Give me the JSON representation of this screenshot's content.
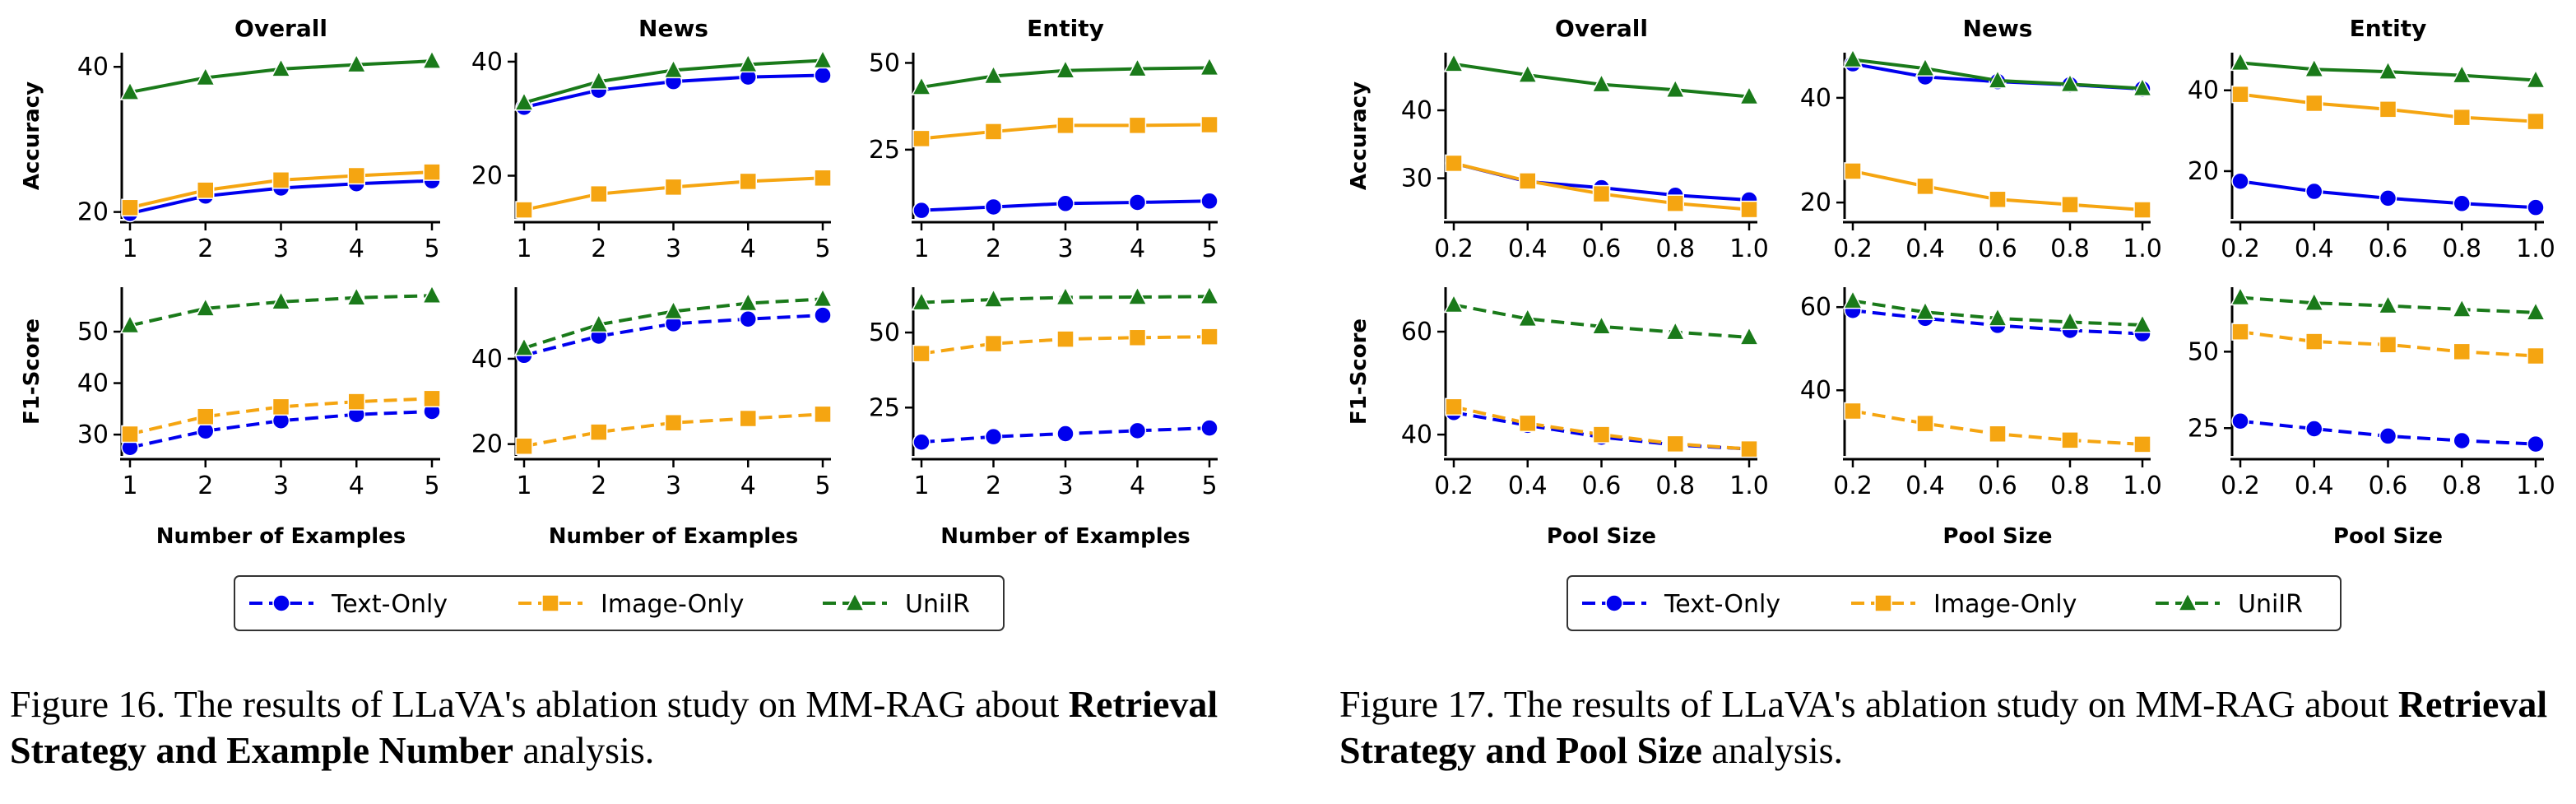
{
  "colors": {
    "text_only": "#0000ee",
    "image_only": "#f5a511",
    "unir": "#1a7a1a"
  },
  "legend": {
    "text_only": "Text-Only",
    "image_only": "Image-Only",
    "unir": "UniIR"
  },
  "captions": {
    "fig16": {
      "pre": "Figure 16.  The results of LLaVA's ablation study on MM-RAG about ",
      "bold": "Retrieval Strategy and Example Number",
      "post": " analysis."
    },
    "fig17": {
      "pre": "Figure 17.  The results of LLaVA's ablation study on MM-RAG about ",
      "bold": "Retrieval Strategy and Pool Size",
      "post": " analysis."
    }
  },
  "chart_data": [
    {
      "figure": "Figure 16",
      "type": "line",
      "xlabel": "Number of Examples",
      "x": [
        1,
        2,
        3,
        4,
        5
      ],
      "xtick_labels": [
        "1",
        "2",
        "3",
        "4",
        "5"
      ],
      "panels": [
        {
          "title": "Overall",
          "ylabel": "Accuracy",
          "ylim": [
            19.5,
            41.5
          ],
          "yticks": [
            20,
            40
          ],
          "series": [
            {
              "name": "Text-Only",
              "values": [
                19.8,
                22.2,
                23.3,
                23.9,
                24.3
              ]
            },
            {
              "name": "Image-Only",
              "values": [
                20.6,
                23.0,
                24.4,
                25.0,
                25.5
              ]
            },
            {
              "name": "UniIR",
              "values": [
                36.5,
                38.5,
                39.7,
                40.3,
                40.8
              ]
            }
          ]
        },
        {
          "title": "News",
          "ylabel": "",
          "ylim": [
            13,
            41
          ],
          "yticks": [
            20,
            40
          ],
          "series": [
            {
              "name": "Text-Only",
              "values": [
                32,
                35,
                36.5,
                37.3,
                37.6
              ]
            },
            {
              "name": "Image-Only",
              "values": [
                14,
                16.8,
                18,
                19,
                19.6
              ]
            },
            {
              "name": "UniIR",
              "values": [
                32.8,
                36.5,
                38.5,
                39.5,
                40.2
              ]
            }
          ]
        },
        {
          "title": "Entity",
          "ylabel": "",
          "ylim": [
            6,
            52
          ],
          "yticks": [
            25,
            50
          ],
          "series": [
            {
              "name": "Text-Only",
              "values": [
                7.5,
                8.5,
                9.5,
                9.8,
                10.2
              ]
            },
            {
              "name": "Image-Only",
              "values": [
                28.2,
                30.2,
                32.0,
                32.0,
                32.2
              ]
            },
            {
              "name": "UniIR",
              "values": [
                43.0,
                46.2,
                47.8,
                48.3,
                48.6
              ]
            }
          ]
        },
        {
          "title": "",
          "ylabel": "F1-Score",
          "ylim": [
            26.5,
            58
          ],
          "yticks": [
            30,
            40,
            50
          ],
          "series": [
            {
              "name": "Text-Only",
              "values": [
                27.5,
                30.7,
                32.7,
                33.9,
                34.5
              ]
            },
            {
              "name": "Image-Only",
              "values": [
                30.1,
                33.5,
                35.4,
                36.4,
                37.0
              ]
            },
            {
              "name": "UniIR",
              "values": [
                51.2,
                54.5,
                55.8,
                56.6,
                57.0
              ]
            }
          ]
        },
        {
          "title": "",
          "ylabel": "",
          "ylim": [
            18,
            56
          ],
          "yticks": [
            20,
            40
          ],
          "series": [
            {
              "name": "Text-Only",
              "values": [
                40.8,
                45.3,
                48.2,
                49.3,
                50.2
              ]
            },
            {
              "name": "Image-Only",
              "values": [
                19.5,
                22.8,
                25,
                26,
                27
              ]
            },
            {
              "name": "UniIR",
              "values": [
                42.5,
                48.0,
                51.1,
                53.0,
                54.0
              ]
            }
          ]
        },
        {
          "title": "",
          "ylabel": "",
          "ylim": [
            10,
            64
          ],
          "yticks": [
            25,
            50
          ],
          "series": [
            {
              "name": "Text-Only",
              "values": [
                13.5,
                15.3,
                16.3,
                17.3,
                18.2
              ]
            },
            {
              "name": "Image-Only",
              "values": [
                43.0,
                46.3,
                47.8,
                48.3,
                48.6
              ]
            },
            {
              "name": "UniIR",
              "values": [
                60.0,
                61.0,
                61.7,
                61.8,
                62.0
              ]
            }
          ]
        }
      ]
    },
    {
      "figure": "Figure 17",
      "type": "line",
      "xlabel": "Pool Size",
      "x": [
        0.2,
        0.4,
        0.6,
        0.8,
        1.0
      ],
      "xtick_labels": [
        "0.2",
        "0.4",
        "0.6",
        "0.8",
        "1.0"
      ],
      "panels": [
        {
          "title": "Overall",
          "ylabel": "Accuracy",
          "ylim": [
            24.5,
            48
          ],
          "yticks": [
            30,
            40
          ],
          "series": [
            {
              "name": "Text-Only",
              "values": [
                32.2,
                29.5,
                28.6,
                27.5,
                26.8
              ]
            },
            {
              "name": "Image-Only",
              "values": [
                32.2,
                29.6,
                27.7,
                26.3,
                25.4
              ]
            },
            {
              "name": "UniIR",
              "values": [
                46.8,
                45.2,
                43.8,
                43.0,
                42.0
              ]
            }
          ]
        },
        {
          "title": "News",
          "ylabel": "",
          "ylim": [
            17.5,
            48
          ],
          "yticks": [
            20,
            40
          ],
          "series": [
            {
              "name": "Text-Only",
              "values": [
                46.5,
                44,
                43.1,
                42.5,
                41.7
              ]
            },
            {
              "name": "Image-Only",
              "values": [
                26,
                23.1,
                20.6,
                19.6,
                18.6
              ]
            },
            {
              "name": "UniIR",
              "values": [
                47.3,
                45.6,
                43.3,
                42.6,
                41.8
              ]
            }
          ]
        },
        {
          "title": "Entity",
          "ylabel": "",
          "ylim": [
            9,
            48.5
          ],
          "yticks": [
            20,
            40
          ],
          "series": [
            {
              "name": "Text-Only",
              "values": [
                17.5,
                15.0,
                13.3,
                12.0,
                11.0
              ]
            },
            {
              "name": "Image-Only",
              "values": [
                39.0,
                36.8,
                35.3,
                33.3,
                32.3
              ]
            },
            {
              "name": "UniIR",
              "values": [
                46.8,
                45.2,
                44.6,
                43.7,
                42.5
              ]
            }
          ]
        },
        {
          "title": "",
          "ylabel": "F1-Score",
          "ylim": [
            36.5,
            68
          ],
          "yticks": [
            40,
            60
          ],
          "series": [
            {
              "name": "Text-Only",
              "values": [
                44.3,
                41.8,
                39.5,
                38.0,
                37.2
              ]
            },
            {
              "name": "Image-Only",
              "values": [
                45.4,
                42.2,
                40.0,
                38.2,
                37.2
              ]
            },
            {
              "name": "UniIR",
              "values": [
                65.2,
                62.5,
                61.0,
                59.9,
                58.9
              ]
            }
          ]
        },
        {
          "title": "",
          "ylabel": "",
          "ylim": [
            25,
            64
          ],
          "yticks": [
            40,
            60
          ],
          "series": [
            {
              "name": "Text-Only",
              "values": [
                59.2,
                57.3,
                55.6,
                54.4,
                53.6
              ]
            },
            {
              "name": "Image-Only",
              "values": [
                35,
                32,
                29.5,
                28,
                27
              ]
            },
            {
              "name": "UniIR",
              "values": [
                61.5,
                58.8,
                57.3,
                56.4,
                55.7
              ]
            }
          ]
        },
        {
          "title": "",
          "ylabel": "",
          "ylim": [
            17,
            70
          ],
          "yticks": [
            25,
            50
          ],
          "series": [
            {
              "name": "Text-Only",
              "values": [
                27.3,
                24.8,
                22.4,
                20.9,
                19.8
              ]
            },
            {
              "name": "Image-Only",
              "values": [
                56.5,
                53.3,
                52.3,
                50.0,
                48.6
              ]
            },
            {
              "name": "UniIR",
              "values": [
                67.7,
                65.9,
                65.0,
                63.8,
                62.8
              ]
            }
          ]
        }
      ]
    }
  ]
}
